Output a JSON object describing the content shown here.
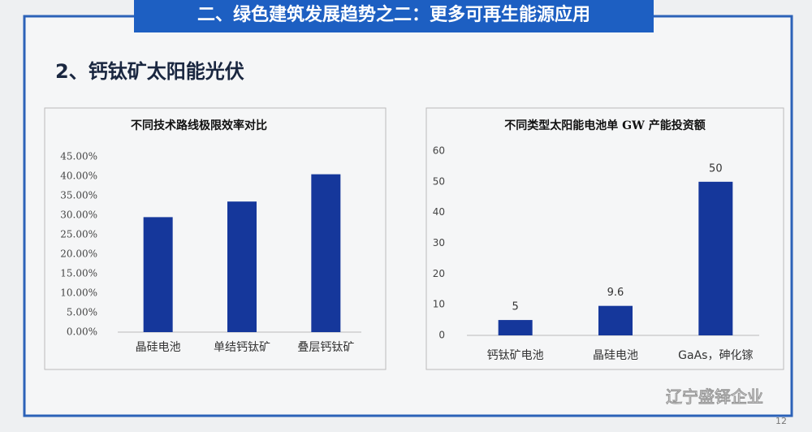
{
  "slide": {
    "banner": "二、绿色建筑发展趋势之二：更多可再生能源应用",
    "heading": "2、钙钛矿太阳能光伏",
    "watermark": "辽宁盛铎企业",
    "page": "12"
  },
  "chart_data": [
    {
      "type": "bar",
      "title": "不同技术路线极限效率对比",
      "categories": [
        "晶硅电池",
        "单结钙钛矿",
        "叠层钙钛矿"
      ],
      "values": [
        29.5,
        33.5,
        40.5
      ],
      "color": "#15379b",
      "ylim": [
        0,
        45
      ],
      "yticks": [
        {
          "value": 0,
          "label": "0.00%"
        },
        {
          "value": 5,
          "label": "5.00%"
        },
        {
          "value": 10,
          "label": "10.00%"
        },
        {
          "value": 15,
          "label": "15.00%"
        },
        {
          "value": 20,
          "label": "20.00%"
        },
        {
          "value": 25,
          "label": "25.00%"
        },
        {
          "value": 30,
          "label": "30.00%"
        },
        {
          "value": 35,
          "label": "35.00%"
        },
        {
          "value": 40,
          "label": "40.00%"
        },
        {
          "value": 45,
          "label": "45.00%"
        }
      ],
      "grid": false
    },
    {
      "type": "bar",
      "title": "不同类型太阳能电池单 GW 产能投资额",
      "categories": [
        "钙钛矿电池",
        "晶硅电池",
        "GaAs，砷化镓"
      ],
      "values": [
        5,
        9.6,
        50
      ],
      "color": "#15379b",
      "ylim": [
        0,
        60
      ],
      "yticks": [
        0,
        10,
        20,
        30,
        40,
        50,
        60
      ],
      "grid": false,
      "data_labels": true
    }
  ]
}
